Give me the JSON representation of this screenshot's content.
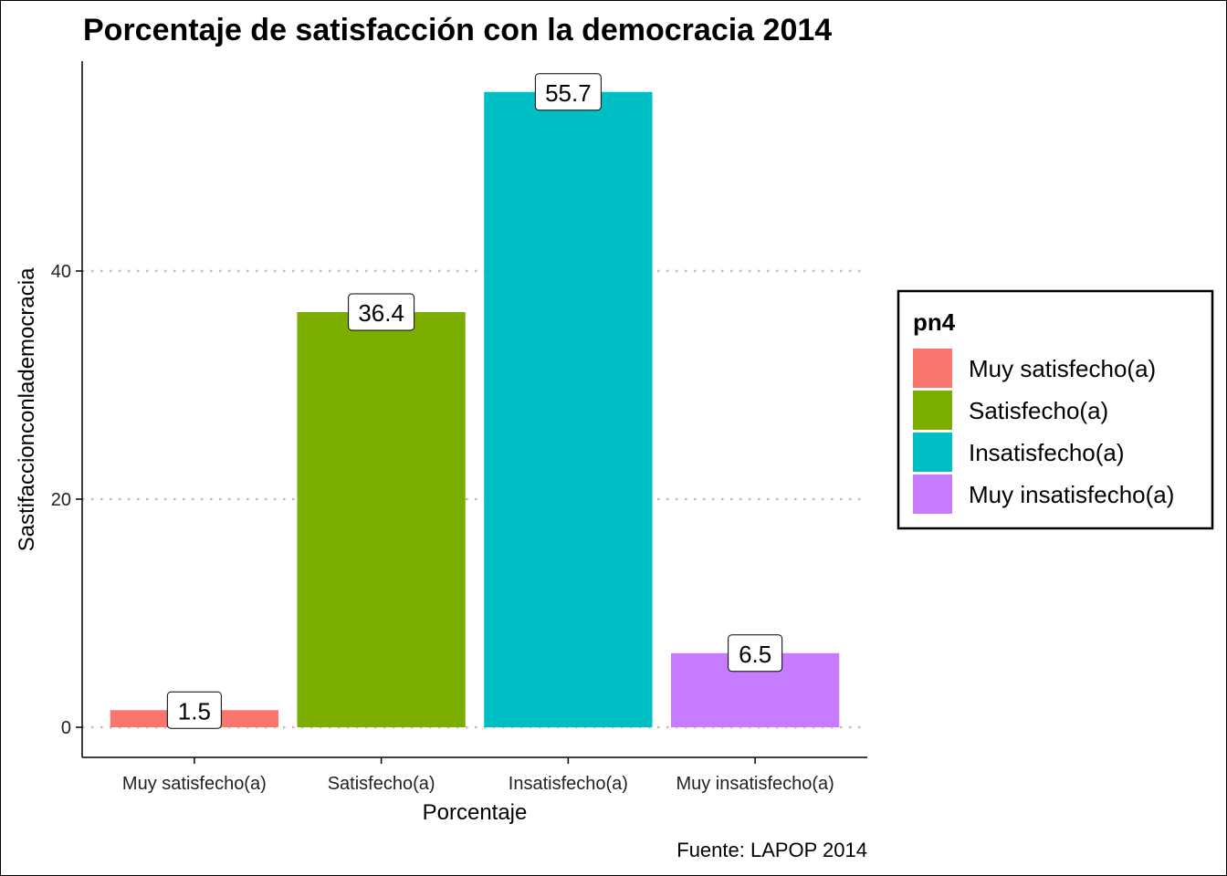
{
  "chart_data": {
    "type": "bar",
    "title": "Porcentaje de satisfacción con la democracia 2014",
    "xlabel": "Porcentaje",
    "ylabel": "Sastifaccionconlademocracia",
    "caption": "Fuente: LAPOP 2014",
    "categories": [
      "Muy satisfecho(a)",
      "Satisfecho(a)",
      "Insatisfecho(a)",
      "Muy insatisfecho(a)"
    ],
    "values": [
      1.5,
      36.4,
      55.7,
      6.5
    ],
    "data_labels": [
      "1.5",
      "36.4",
      "55.7",
      "6.5"
    ],
    "colors": [
      "#F8766D",
      "#7CAE00",
      "#00BFC4",
      "#C77CFF"
    ],
    "ylim": [
      -2.64,
      58.4
    ],
    "yticks": [
      0,
      20,
      40
    ],
    "ytick_labels": [
      "0",
      "20",
      "40"
    ],
    "grid": "horizontal major, dotted",
    "legend": {
      "title": "pn4",
      "position": "right",
      "entries": [
        "Muy satisfecho(a)",
        "Satisfecho(a)",
        "Insatisfecho(a)",
        "Muy insatisfecho(a)"
      ]
    }
  }
}
